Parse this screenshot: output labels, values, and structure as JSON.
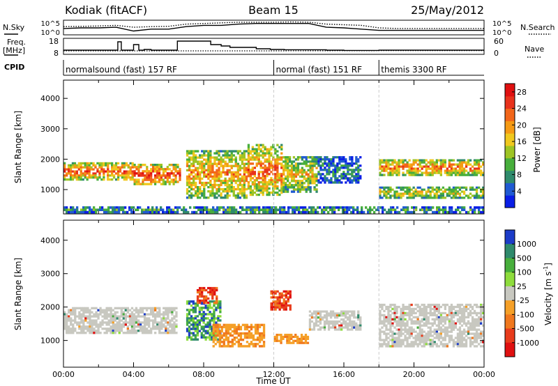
{
  "header": {
    "station_title": "Kodiak (fitACF)",
    "beam": "Beam 15",
    "date": "25/May/2012"
  },
  "chart_data": [
    {
      "type": "line",
      "name": "noise-panel",
      "left_label": "N.Sky",
      "right_label": "N.Search",
      "left_ticks": [
        "10^5",
        "10^0"
      ],
      "right_ticks": [
        "10^5",
        "10^0"
      ],
      "series": [
        {
          "name": "N.Sky",
          "style": "solid",
          "x": [
            0,
            1,
            2,
            3,
            4,
            5,
            6,
            7,
            8,
            9,
            10,
            11,
            12,
            13,
            14,
            15,
            16,
            17,
            18,
            19,
            20,
            21,
            22,
            23,
            24
          ],
          "values": [
            0.45,
            0.5,
            0.5,
            0.55,
            0.25,
            0.4,
            0.4,
            0.6,
            0.7,
            0.7,
            0.8,
            0.85,
            0.85,
            0.85,
            0.85,
            0.55,
            0.5,
            0.4,
            0.3,
            0.3,
            0.3,
            0.3,
            0.3,
            0.3,
            0.3
          ]
        },
        {
          "name": "N.Search",
          "style": "dotted",
          "x": [
            0,
            1,
            2,
            3,
            4,
            5,
            6,
            7,
            8,
            9,
            10,
            11,
            12,
            13,
            14,
            15,
            16,
            17,
            18,
            19,
            20,
            21,
            22,
            23,
            24
          ],
          "values": [
            0.6,
            0.62,
            0.65,
            0.7,
            0.55,
            0.6,
            0.62,
            0.8,
            0.85,
            0.9,
            0.95,
            0.95,
            0.95,
            0.97,
            0.95,
            0.8,
            0.75,
            0.7,
            0.5,
            0.45,
            0.45,
            0.45,
            0.45,
            0.45,
            0.45
          ]
        }
      ]
    },
    {
      "type": "line",
      "name": "frequency-panel",
      "left_label": "Freq.",
      "left_unit": "[MHz]",
      "right_label": "Nave",
      "left_ticks": [
        "18",
        "8"
      ],
      "right_ticks": [
        "60",
        "0"
      ],
      "series": [
        {
          "name": "Freq.",
          "style": "solid",
          "step": true,
          "x": [
            0,
            2.0,
            3.1,
            3.3,
            4.0,
            4.3,
            4.6,
            5.0,
            6.5,
            8.4,
            9.0,
            9.5,
            11.0,
            11.8,
            12.6,
            15.0,
            16.0,
            18.0,
            24.0
          ],
          "values": [
            10.5,
            10.5,
            16.5,
            10.5,
            14.5,
            10.5,
            11.0,
            10.5,
            17.0,
            14.5,
            13.5,
            12.5,
            11.5,
            11.0,
            10.8,
            10.5,
            10.3,
            10.5,
            10.5
          ]
        },
        {
          "name": "Nave",
          "style": "dotted",
          "x": [
            0,
            6,
            12,
            18,
            24
          ],
          "values": [
            12,
            12,
            12,
            13,
            13
          ]
        }
      ]
    },
    {
      "type": "table",
      "name": "cpid-bar",
      "label": "CPID",
      "segments": [
        {
          "label": "normalsound (fast) 157 RF",
          "start": 0,
          "end": 12
        },
        {
          "label": "normal (fast) 151 RF",
          "start": 12,
          "end": 18
        },
        {
          "label": "themis 3300 RF",
          "start": 18,
          "end": 24
        }
      ]
    },
    {
      "type": "heatmap",
      "name": "power-panel",
      "ylabel": "Slant Range [km]",
      "ylim": [
        200,
        4600
      ],
      "yticks": [
        1000,
        2000,
        3000,
        4000
      ],
      "x_range": [
        0,
        24
      ],
      "colorbar": {
        "label": "Power [dB]",
        "ticks": [
          4,
          8,
          12,
          16,
          20,
          24,
          28
        ],
        "range": [
          0,
          30
        ],
        "colors": [
          "#0a1ee6",
          "#205ad2",
          "#2f8a6c",
          "#47ae3c",
          "#9ec424",
          "#f0c81e",
          "#f59a14",
          "#f2661a",
          "#e8321c",
          "#e01010"
        ]
      },
      "echo_regions": [
        {
          "x0": 0.0,
          "x1": 4.0,
          "y0": 1300,
          "y1": 1900,
          "level": 0.7
        },
        {
          "x0": 4.0,
          "x1": 6.7,
          "y0": 1150,
          "y1": 1850,
          "level": 0.75
        },
        {
          "x0": 7.0,
          "x1": 10.5,
          "y0": 700,
          "y1": 2300,
          "level": 0.6
        },
        {
          "x0": 10.5,
          "x1": 12.5,
          "y0": 800,
          "y1": 2500,
          "level": 0.65
        },
        {
          "x0": 12.5,
          "x1": 14.5,
          "y0": 900,
          "y1": 2100,
          "level": 0.5
        },
        {
          "x0": 14.5,
          "x1": 17.0,
          "y0": 1200,
          "y1": 2100,
          "level": 0.2
        },
        {
          "x0": 18.0,
          "x1": 24.0,
          "y0": 1450,
          "y1": 2000,
          "level": 0.65
        },
        {
          "x0": 18.0,
          "x1": 24.0,
          "y0": 700,
          "y1": 1100,
          "level": 0.45
        },
        {
          "x0": 0.0,
          "x1": 24.0,
          "y0": 220,
          "y1": 450,
          "level": 0.25
        }
      ]
    },
    {
      "type": "heatmap",
      "name": "velocity-panel",
      "ylabel": "Slant Range [km]",
      "xlabel": "Time UT",
      "ylim": [
        200,
        4600
      ],
      "yticks": [
        1000,
        2000,
        3000,
        4000
      ],
      "x_range": [
        0,
        24
      ],
      "xticks": [
        "00:00",
        "04:00",
        "08:00",
        "12:00",
        "16:00",
        "20:00",
        "00:00"
      ],
      "colorbar": {
        "label": "Velocity",
        "unit": "[m s",
        "unit_exponent": "-1",
        "unit_close": "]",
        "ticks": [
          "1000",
          "500",
          "100",
          "25",
          "-25",
          "-100",
          "-500",
          "-1000"
        ],
        "colors": [
          "#1c3cc8",
          "#2f8a6c",
          "#47ae3c",
          "#8edc3c",
          "#c8c8c0",
          "#f5a028",
          "#f0781e",
          "#e83c1c",
          "#e01010"
        ]
      },
      "echo_regions": [
        {
          "x0": 0.0,
          "x1": 6.5,
          "y0": 1200,
          "y1": 2000,
          "class": "ground"
        },
        {
          "x0": 7.0,
          "x1": 9.0,
          "y0": 1000,
          "y1": 2200,
          "class": "positive"
        },
        {
          "x0": 7.6,
          "x1": 8.8,
          "y0": 2100,
          "y1": 2600,
          "class": "negative"
        },
        {
          "x0": 8.5,
          "x1": 11.5,
          "y0": 800,
          "y1": 1500,
          "class": "negative-weak"
        },
        {
          "x0": 11.8,
          "x1": 13.0,
          "y0": 1900,
          "y1": 2500,
          "class": "negative"
        },
        {
          "x0": 12.0,
          "x1": 14.0,
          "y0": 900,
          "y1": 1200,
          "class": "negative-weak"
        },
        {
          "x0": 14.0,
          "x1": 17.0,
          "y0": 1300,
          "y1": 1900,
          "class": "ground"
        },
        {
          "x0": 18.0,
          "x1": 24.0,
          "y0": 800,
          "y1": 2100,
          "class": "ground"
        }
      ]
    }
  ]
}
